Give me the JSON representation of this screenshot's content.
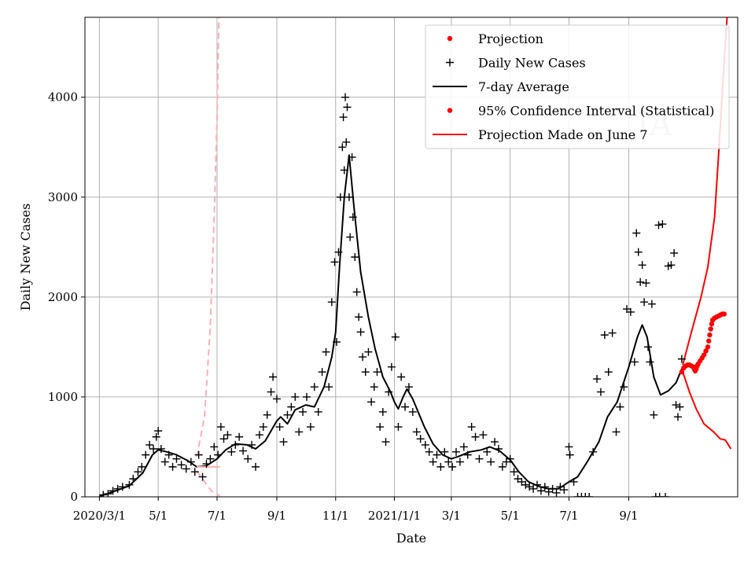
{
  "chart_data": {
    "type": "line",
    "xlabel": "Date",
    "ylabel": "Daily New Cases",
    "xlim": [
      "2020-02-15",
      "2021-12-23"
    ],
    "ylim": [
      0,
      4800
    ],
    "grid": true,
    "legend_position": "top-right",
    "watermark": "IA",
    "x_ticks": [
      {
        "date": "2020-03-01",
        "label": "2020/3/1"
      },
      {
        "date": "2020-05-01",
        "label": "5/1"
      },
      {
        "date": "2020-07-01",
        "label": "7/1"
      },
      {
        "date": "2020-09-01",
        "label": "9/1"
      },
      {
        "date": "2020-11-01",
        "label": "11/1"
      },
      {
        "date": "2021-01-01",
        "label": "2021/1/1"
      },
      {
        "date": "2021-03-01",
        "label": "3/1"
      },
      {
        "date": "2021-05-01",
        "label": "5/1"
      },
      {
        "date": "2021-07-01",
        "label": "7/1"
      },
      {
        "date": "2021-09-01",
        "label": "9/1"
      }
    ],
    "y_ticks": [
      0,
      1000,
      2000,
      3000,
      4000
    ],
    "legend": [
      {
        "label": "Projection",
        "marker": "dot",
        "color": "#ff0000"
      },
      {
        "label": "Daily New Cases",
        "marker": "plus",
        "color": "#000000"
      },
      {
        "label": "7-day Average",
        "marker": "line",
        "color": "#000000"
      },
      {
        "label": "95% Confidence Interval (Statistical)",
        "marker": "dot",
        "color": "#ff0000"
      },
      {
        "label": "Projection Made on June 7",
        "marker": "line",
        "color": "#ff0000"
      }
    ],
    "series": [
      {
        "name": "7-day Average",
        "style": "solid",
        "color": "#000000",
        "points": [
          [
            "2020-03-01",
            5
          ],
          [
            "2020-03-15",
            50
          ],
          [
            "2020-04-01",
            110
          ],
          [
            "2020-04-15",
            240
          ],
          [
            "2020-04-25",
            420
          ],
          [
            "2020-05-01",
            470
          ],
          [
            "2020-05-10",
            450
          ],
          [
            "2020-05-20",
            420
          ],
          [
            "2020-06-01",
            360
          ],
          [
            "2020-06-10",
            300
          ],
          [
            "2020-06-20",
            310
          ],
          [
            "2020-07-01",
            380
          ],
          [
            "2020-07-10",
            470
          ],
          [
            "2020-07-20",
            530
          ],
          [
            "2020-08-01",
            520
          ],
          [
            "2020-08-10",
            480
          ],
          [
            "2020-08-20",
            560
          ],
          [
            "2020-09-01",
            760
          ],
          [
            "2020-09-05",
            800
          ],
          [
            "2020-09-12",
            730
          ],
          [
            "2020-09-20",
            870
          ],
          [
            "2020-10-01",
            920
          ],
          [
            "2020-10-10",
            900
          ],
          [
            "2020-10-20",
            1100
          ],
          [
            "2020-10-28",
            1400
          ],
          [
            "2020-11-01",
            1650
          ],
          [
            "2020-11-05",
            2300
          ],
          [
            "2020-11-10",
            3000
          ],
          [
            "2020-11-15",
            3420
          ],
          [
            "2020-11-20",
            2900
          ],
          [
            "2020-11-27",
            2250
          ],
          [
            "2020-12-05",
            1800
          ],
          [
            "2020-12-12",
            1480
          ],
          [
            "2020-12-20",
            1200
          ],
          [
            "2020-12-28",
            1050
          ],
          [
            "2021-01-01",
            950
          ],
          [
            "2021-01-05",
            880
          ],
          [
            "2021-01-10",
            1000
          ],
          [
            "2021-01-14",
            1080
          ],
          [
            "2021-01-20",
            980
          ],
          [
            "2021-02-01",
            700
          ],
          [
            "2021-02-10",
            530
          ],
          [
            "2021-02-20",
            420
          ],
          [
            "2021-03-01",
            380
          ],
          [
            "2021-03-10",
            410
          ],
          [
            "2021-03-20",
            450
          ],
          [
            "2021-04-01",
            470
          ],
          [
            "2021-04-10",
            500
          ],
          [
            "2021-04-20",
            460
          ],
          [
            "2021-05-01",
            370
          ],
          [
            "2021-05-10",
            250
          ],
          [
            "2021-05-20",
            150
          ],
          [
            "2021-06-01",
            100
          ],
          [
            "2021-06-10",
            80
          ],
          [
            "2021-06-20",
            80
          ],
          [
            "2021-07-01",
            150
          ],
          [
            "2021-07-10",
            200
          ],
          [
            "2021-07-20",
            350
          ],
          [
            "2021-08-01",
            550
          ],
          [
            "2021-08-10",
            800
          ],
          [
            "2021-08-20",
            950
          ],
          [
            "2021-09-01",
            1300
          ],
          [
            "2021-09-10",
            1600
          ],
          [
            "2021-09-15",
            1720
          ],
          [
            "2021-09-20",
            1600
          ],
          [
            "2021-09-27",
            1200
          ],
          [
            "2021-10-04",
            1020
          ],
          [
            "2021-10-12",
            1060
          ],
          [
            "2021-10-20",
            1140
          ],
          [
            "2021-10-26",
            1280
          ]
        ]
      },
      {
        "name": "Projection Made on June 7",
        "style": "solid",
        "color": "#ff0000",
        "points": [
          [
            "2021-10-27",
            1250
          ],
          [
            "2021-11-03",
            1050
          ],
          [
            "2021-11-10",
            880
          ],
          [
            "2021-11-18",
            730
          ],
          [
            "2021-11-28",
            650
          ],
          [
            "2021-12-05",
            580
          ],
          [
            "2021-12-10",
            570
          ],
          [
            "2021-12-16",
            480
          ]
        ]
      },
      {
        "name": "Projection Made on June 7",
        "style": "solid",
        "color": "#ff0000",
        "points": [
          [
            "2021-10-27",
            1320
          ],
          [
            "2021-11-05",
            1650
          ],
          [
            "2021-11-15",
            2000
          ],
          [
            "2021-11-22",
            2300
          ],
          [
            "2021-11-29",
            2800
          ],
          [
            "2021-12-03",
            3400
          ],
          [
            "2021-12-08",
            4200
          ],
          [
            "2021-12-12",
            4800
          ]
        ]
      },
      {
        "name": "Projection Made on June 7",
        "style": "dashed",
        "color": "#ffb0b0",
        "points": [
          [
            "2020-06-10",
            400
          ],
          [
            "2020-06-18",
            800
          ],
          [
            "2020-06-24",
            1700
          ],
          [
            "2020-06-28",
            2800
          ],
          [
            "2020-07-01",
            3800
          ],
          [
            "2020-07-03",
            4800
          ]
        ]
      },
      {
        "name": "Projection Made on June 7",
        "style": "dashed",
        "color": "#ffb0b0",
        "points": [
          [
            "2020-06-10",
            260
          ],
          [
            "2020-06-18",
            150
          ],
          [
            "2020-06-25",
            60
          ],
          [
            "2020-07-04",
            10
          ]
        ]
      },
      {
        "name": "Projection Made on June 7",
        "style": "solid",
        "color": "#ffb0b0",
        "points": [
          [
            "2020-06-10",
            300
          ],
          [
            "2020-06-20",
            300
          ],
          [
            "2020-07-04",
            300
          ]
        ]
      }
    ],
    "projection_dots": [
      [
        "2021-10-26",
        1250
      ],
      [
        "2021-10-28",
        1290
      ],
      [
        "2021-10-30",
        1310
      ],
      [
        "2021-11-01",
        1320
      ],
      [
        "2021-11-03",
        1320
      ],
      [
        "2021-11-05",
        1310
      ],
      [
        "2021-11-07",
        1300
      ],
      [
        "2021-11-08",
        1280
      ],
      [
        "2021-11-09",
        1260
      ],
      [
        "2021-11-10",
        1280
      ],
      [
        "2021-11-11",
        1310
      ],
      [
        "2021-11-12",
        1330
      ],
      [
        "2021-11-14",
        1360
      ],
      [
        "2021-11-16",
        1390
      ],
      [
        "2021-11-18",
        1420
      ],
      [
        "2021-11-20",
        1460
      ],
      [
        "2021-11-22",
        1500
      ],
      [
        "2021-11-23",
        1560
      ],
      [
        "2021-11-24",
        1620
      ],
      [
        "2021-11-25",
        1680
      ],
      [
        "2021-11-26",
        1730
      ],
      [
        "2021-11-27",
        1770
      ],
      [
        "2021-11-29",
        1790
      ],
      [
        "2021-12-01",
        1800
      ],
      [
        "2021-12-03",
        1810
      ],
      [
        "2021-12-05",
        1820
      ],
      [
        "2021-12-07",
        1830
      ],
      [
        "2021-12-09",
        1830
      ]
    ],
    "daily_new_cases": [
      [
        "2020-03-05",
        20
      ],
      [
        "2020-03-10",
        30
      ],
      [
        "2020-03-15",
        60
      ],
      [
        "2020-03-20",
        80
      ],
      [
        "2020-03-25",
        100
      ],
      [
        "2020-04-01",
        120
      ],
      [
        "2020-04-05",
        180
      ],
      [
        "2020-04-10",
        250
      ],
      [
        "2020-04-14",
        300
      ],
      [
        "2020-04-18",
        420
      ],
      [
        "2020-04-22",
        520
      ],
      [
        "2020-04-26",
        480
      ],
      [
        "2020-04-29",
        600
      ],
      [
        "2020-05-01",
        660
      ],
      [
        "2020-05-04",
        480
      ],
      [
        "2020-05-08",
        350
      ],
      [
        "2020-05-12",
        420
      ],
      [
        "2020-05-16",
        300
      ],
      [
        "2020-05-20",
        380
      ],
      [
        "2020-05-25",
        320
      ],
      [
        "2020-05-30",
        280
      ],
      [
        "2020-06-04",
        350
      ],
      [
        "2020-06-08",
        250
      ],
      [
        "2020-06-12",
        420
      ],
      [
        "2020-06-16",
        200
      ],
      [
        "2020-06-20",
        330
      ],
      [
        "2020-06-24",
        380
      ],
      [
        "2020-06-28",
        500
      ],
      [
        "2020-07-02",
        420
      ],
      [
        "2020-07-05",
        700
      ],
      [
        "2020-07-08",
        580
      ],
      [
        "2020-07-12",
        620
      ],
      [
        "2020-07-16",
        450
      ],
      [
        "2020-07-20",
        520
      ],
      [
        "2020-07-24",
        600
      ],
      [
        "2020-07-28",
        460
      ],
      [
        "2020-08-02",
        380
      ],
      [
        "2020-08-06",
        520
      ],
      [
        "2020-08-10",
        300
      ],
      [
        "2020-08-14",
        620
      ],
      [
        "2020-08-18",
        700
      ],
      [
        "2020-08-22",
        820
      ],
      [
        "2020-08-26",
        1050
      ],
      [
        "2020-08-28",
        1200
      ],
      [
        "2020-09-01",
        980
      ],
      [
        "2020-09-04",
        700
      ],
      [
        "2020-09-08",
        550
      ],
      [
        "2020-09-12",
        820
      ],
      [
        "2020-09-16",
        900
      ],
      [
        "2020-09-20",
        1000
      ],
      [
        "2020-09-24",
        650
      ],
      [
        "2020-09-28",
        850
      ],
      [
        "2020-10-02",
        1000
      ],
      [
        "2020-10-06",
        700
      ],
      [
        "2020-10-10",
        1100
      ],
      [
        "2020-10-14",
        850
      ],
      [
        "2020-10-18",
        1250
      ],
      [
        "2020-10-22",
        1450
      ],
      [
        "2020-10-25",
        1100
      ],
      [
        "2020-10-28",
        1950
      ],
      [
        "2020-10-31",
        2350
      ],
      [
        "2020-11-02",
        1550
      ],
      [
        "2020-11-04",
        2450
      ],
      [
        "2020-11-06",
        3000
      ],
      [
        "2020-11-08",
        3500
      ],
      [
        "2020-11-09",
        3800
      ],
      [
        "2020-11-10",
        3270
      ],
      [
        "2020-11-11",
        4000
      ],
      [
        "2020-11-12",
        3550
      ],
      [
        "2020-11-13",
        3900
      ],
      [
        "2020-11-15",
        3000
      ],
      [
        "2020-11-16",
        2600
      ],
      [
        "2020-11-18",
        3400
      ],
      [
        "2020-11-19",
        2800
      ],
      [
        "2020-11-21",
        2400
      ],
      [
        "2020-11-23",
        2050
      ],
      [
        "2020-11-25",
        1800
      ],
      [
        "2020-11-27",
        1650
      ],
      [
        "2020-11-29",
        1400
      ],
      [
        "2020-12-02",
        1250
      ],
      [
        "2020-12-05",
        1450
      ],
      [
        "2020-12-08",
        950
      ],
      [
        "2020-12-11",
        1100
      ],
      [
        "2020-12-14",
        1250
      ],
      [
        "2020-12-17",
        700
      ],
      [
        "2020-12-20",
        850
      ],
      [
        "2020-12-23",
        550
      ],
      [
        "2020-12-26",
        1050
      ],
      [
        "2020-12-29",
        1300
      ],
      [
        "2021-01-02",
        1600
      ],
      [
        "2021-01-05",
        700
      ],
      [
        "2021-01-08",
        1200
      ],
      [
        "2021-01-12",
        900
      ],
      [
        "2021-01-16",
        1100
      ],
      [
        "2021-01-20",
        850
      ],
      [
        "2021-01-24",
        650
      ],
      [
        "2021-01-28",
        580
      ],
      [
        "2021-02-02",
        520
      ],
      [
        "2021-02-06",
        450
      ],
      [
        "2021-02-10",
        350
      ],
      [
        "2021-02-14",
        420
      ],
      [
        "2021-02-18",
        300
      ],
      [
        "2021-02-22",
        450
      ],
      [
        "2021-02-26",
        350
      ],
      [
        "2021-03-02",
        300
      ],
      [
        "2021-03-06",
        450
      ],
      [
        "2021-03-10",
        350
      ],
      [
        "2021-03-14",
        500
      ],
      [
        "2021-03-18",
        420
      ],
      [
        "2021-03-22",
        700
      ],
      [
        "2021-03-26",
        600
      ],
      [
        "2021-03-30",
        380
      ],
      [
        "2021-04-03",
        620
      ],
      [
        "2021-04-07",
        450
      ],
      [
        "2021-04-11",
        350
      ],
      [
        "2021-04-15",
        550
      ],
      [
        "2021-04-19",
        480
      ],
      [
        "2021-04-23",
        300
      ],
      [
        "2021-04-27",
        350
      ],
      [
        "2021-05-01",
        380
      ],
      [
        "2021-05-05",
        250
      ],
      [
        "2021-05-09",
        180
      ],
      [
        "2021-05-13",
        150
      ],
      [
        "2021-05-17",
        120
      ],
      [
        "2021-05-21",
        100
      ],
      [
        "2021-05-25",
        80
      ],
      [
        "2021-05-29",
        120
      ],
      [
        "2021-06-02",
        60
      ],
      [
        "2021-06-06",
        100
      ],
      [
        "2021-06-10",
        50
      ],
      [
        "2021-06-14",
        80
      ],
      [
        "2021-06-18",
        40
      ],
      [
        "2021-06-22",
        100
      ],
      [
        "2021-06-26",
        70
      ],
      [
        "2021-07-01",
        500
      ],
      [
        "2021-07-02",
        420
      ],
      [
        "2021-07-06",
        150
      ],
      [
        "2021-07-10",
        0
      ],
      [
        "2021-07-14",
        0
      ],
      [
        "2021-07-18",
        0
      ],
      [
        "2021-07-22",
        0
      ],
      [
        "2021-07-26",
        450
      ],
      [
        "2021-07-30",
        1180
      ],
      [
        "2021-08-03",
        1050
      ],
      [
        "2021-08-07",
        1620
      ],
      [
        "2021-08-11",
        1250
      ],
      [
        "2021-08-15",
        1640
      ],
      [
        "2021-08-19",
        650
      ],
      [
        "2021-08-23",
        900
      ],
      [
        "2021-08-27",
        1100
      ],
      [
        "2021-08-30",
        1880
      ],
      [
        "2021-09-03",
        1850
      ],
      [
        "2021-09-07",
        1350
      ],
      [
        "2021-09-09",
        2640
      ],
      [
        "2021-09-11",
        2450
      ],
      [
        "2021-09-13",
        2150
      ],
      [
        "2021-09-15",
        2320
      ],
      [
        "2021-09-17",
        1950
      ],
      [
        "2021-09-19",
        2140
      ],
      [
        "2021-09-21",
        1500
      ],
      [
        "2021-09-23",
        1350
      ],
      [
        "2021-09-25",
        1930
      ],
      [
        "2021-09-27",
        820
      ],
      [
        "2021-09-29",
        0
      ],
      [
        "2021-10-02",
        2720
      ],
      [
        "2021-10-03",
        0
      ],
      [
        "2021-10-06",
        2730
      ],
      [
        "2021-10-09",
        0
      ],
      [
        "2021-10-12",
        2310
      ],
      [
        "2021-10-15",
        2320
      ],
      [
        "2021-10-18",
        2440
      ],
      [
        "2021-10-20",
        920
      ],
      [
        "2021-10-22",
        800
      ],
      [
        "2021-10-24",
        900
      ],
      [
        "2021-10-26",
        1380
      ]
    ]
  }
}
